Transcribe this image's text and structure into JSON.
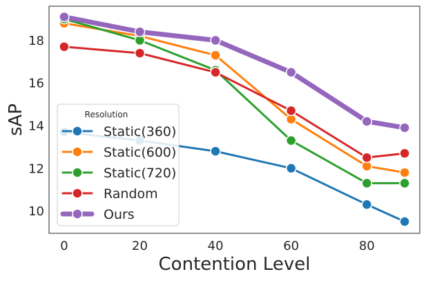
{
  "chart_data": {
    "type": "line",
    "title": "",
    "xlabel": "Contention Level",
    "ylabel": "sAP",
    "x": [
      0,
      20,
      40,
      60,
      80,
      90
    ],
    "x_ticks": [
      "0",
      "20",
      "40",
      "60",
      "80"
    ],
    "y_ticks": [
      "10",
      "12",
      "14",
      "16",
      "18"
    ],
    "xlim": [
      -4,
      94
    ],
    "ylim": [
      8.95,
      19.6
    ],
    "grid": false,
    "legend": {
      "title": "Resolution",
      "placement": "lower-left"
    },
    "series": [
      {
        "name": "Static(360)",
        "color": "#1f77b4",
        "emphasis": false,
        "values": [
          13.7,
          13.3,
          12.8,
          12.0,
          10.3,
          9.5
        ]
      },
      {
        "name": "Static(600)",
        "color": "#ff7f0e",
        "emphasis": false,
        "values": [
          18.8,
          18.2,
          17.3,
          14.3,
          12.1,
          11.8
        ]
      },
      {
        "name": "Static(720)",
        "color": "#2ca02c",
        "emphasis": false,
        "values": [
          19.0,
          18.0,
          16.6,
          13.3,
          11.3,
          11.3
        ]
      },
      {
        "name": "Random",
        "color": "#d62728",
        "emphasis": false,
        "values": [
          17.7,
          17.4,
          16.5,
          14.7,
          12.5,
          12.7
        ]
      },
      {
        "name": "Ours",
        "color": "#9467bd",
        "emphasis": true,
        "values": [
          19.1,
          18.4,
          18.0,
          16.5,
          14.2,
          13.9
        ]
      }
    ]
  }
}
